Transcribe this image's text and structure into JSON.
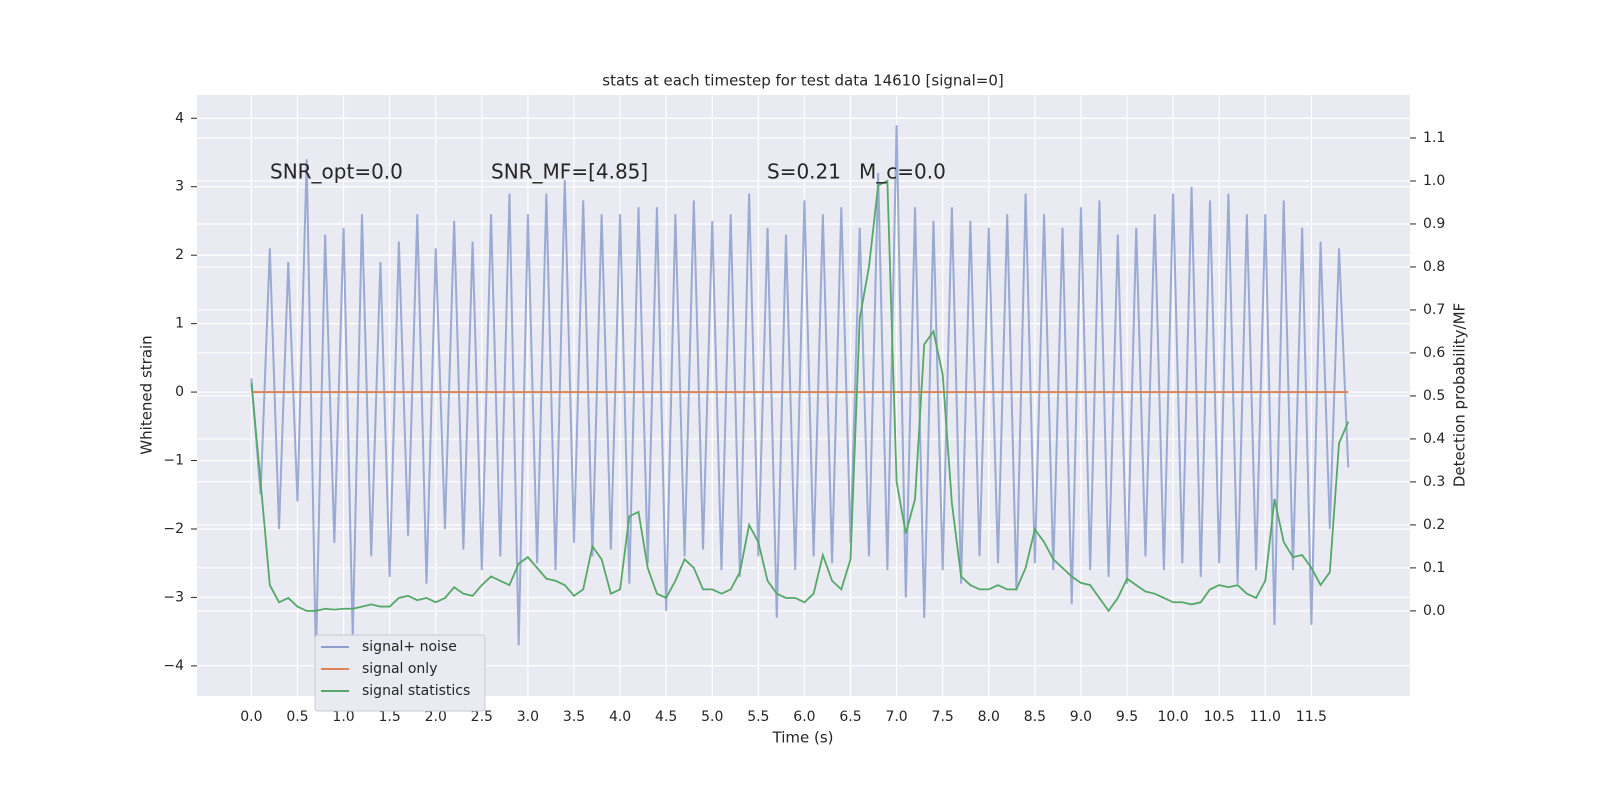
{
  "chart_data": {
    "type": "line",
    "title": "stats at each timestep for test data 14610 [signal=0]",
    "xlabel": "Time (s)",
    "ylabel": "Whitened strain",
    "y2label": "Detection probability/MF",
    "annotations": [
      "SNR_opt=0.0",
      "SNR_MF=[4.85]",
      "S=0.21",
      "M_c=0.0"
    ],
    "x": [
      0.0,
      0.1,
      0.2,
      0.3,
      0.4,
      0.5,
      0.6,
      0.7,
      0.8,
      0.9,
      1.0,
      1.1,
      1.2,
      1.3,
      1.4,
      1.5,
      1.6,
      1.7,
      1.8,
      1.9,
      2.0,
      2.1,
      2.2,
      2.3,
      2.4,
      2.5,
      2.6,
      2.7,
      2.8,
      2.9,
      3.0,
      3.1,
      3.2,
      3.3,
      3.4,
      3.5,
      3.6,
      3.7,
      3.8,
      3.9,
      4.0,
      4.1,
      4.2,
      4.3,
      4.4,
      4.5,
      4.6,
      4.7,
      4.8,
      4.9,
      5.0,
      5.1,
      5.2,
      5.3,
      5.4,
      5.5,
      5.6,
      5.7,
      5.8,
      5.9,
      6.0,
      6.1,
      6.2,
      6.3,
      6.4,
      6.5,
      6.6,
      6.7,
      6.8,
      6.9,
      7.0,
      7.1,
      7.2,
      7.3,
      7.4,
      7.5,
      7.6,
      7.7,
      7.8,
      7.9,
      8.0,
      8.1,
      8.2,
      8.3,
      8.4,
      8.5,
      8.6,
      8.7,
      8.8,
      8.9,
      9.0,
      9.1,
      9.2,
      9.3,
      9.4,
      9.5,
      9.6,
      9.7,
      9.8,
      9.9,
      10.0,
      10.1,
      10.2,
      10.3,
      10.4,
      10.5,
      10.6,
      10.7,
      10.8,
      10.9,
      11.0,
      11.1,
      11.2,
      11.3,
      11.4,
      11.5,
      11.6,
      11.7,
      11.8,
      11.9
    ],
    "series": [
      {
        "name": "signal+ noise",
        "color": "#8c9fcd",
        "values": [
          0.2,
          -1.5,
          2.1,
          -2.0,
          1.9,
          -1.6,
          3.4,
          -3.9,
          2.3,
          -2.2,
          2.4,
          -3.6,
          2.6,
          -2.4,
          1.9,
          -2.7,
          2.2,
          -2.1,
          2.6,
          -2.8,
          2.1,
          -2.0,
          2.5,
          -2.3,
          2.2,
          -2.6,
          2.6,
          -2.4,
          2.9,
          -3.7,
          2.6,
          -2.5,
          2.9,
          -2.6,
          3.1,
          -2.2,
          2.8,
          -2.4,
          2.6,
          -2.3,
          2.6,
          -2.8,
          2.7,
          -2.5,
          2.7,
          -3.2,
          2.6,
          -2.4,
          2.8,
          -2.3,
          2.5,
          -2.6,
          2.6,
          -2.7,
          2.9,
          -2.4,
          2.4,
          -3.3,
          2.3,
          -2.6,
          2.8,
          -2.4,
          2.6,
          -2.5,
          2.7,
          -2.2,
          2.4,
          -2.4,
          3.2,
          -2.6,
          3.9,
          -3.0,
          2.7,
          -3.3,
          2.5,
          -2.6,
          2.7,
          -2.8,
          2.5,
          -2.4,
          2.4,
          -2.5,
          2.6,
          -2.9,
          2.9,
          -2.5,
          2.6,
          -2.6,
          2.4,
          -3.1,
          2.7,
          -2.6,
          2.8,
          -2.7,
          2.3,
          -2.8,
          2.4,
          -2.4,
          2.6,
          -2.6,
          2.9,
          -2.5,
          3.0,
          -2.7,
          2.8,
          -2.5,
          2.9,
          -2.8,
          2.6,
          -2.6,
          2.6,
          -3.4,
          2.8,
          -2.6,
          2.4,
          -3.4,
          2.2,
          -2.0,
          2.1,
          -1.1
        ]
      },
      {
        "name": "signal only",
        "color": "#dd8452",
        "x": [
          0.0,
          11.9
        ],
        "values": [
          0,
          0
        ]
      },
      {
        "name": "signal statistics",
        "color": "#55a868",
        "axis": "y2",
        "values": [
          0.53,
          0.3,
          0.06,
          0.02,
          0.03,
          0.01,
          0,
          0,
          0.005,
          0.003,
          0.005,
          0.005,
          0.01,
          0.015,
          0.01,
          0.01,
          0.03,
          0.035,
          0.025,
          0.03,
          0.02,
          0.03,
          0.055,
          0.04,
          0.035,
          0.06,
          0.08,
          0.07,
          0.06,
          0.11,
          0.125,
          0.1,
          0.075,
          0.07,
          0.06,
          0.035,
          0.05,
          0.15,
          0.12,
          0.04,
          0.05,
          0.22,
          0.23,
          0.1,
          0.04,
          0.03,
          0.07,
          0.12,
          0.1,
          0.05,
          0.05,
          0.04,
          0.05,
          0.09,
          0.2,
          0.16,
          0.07,
          0.04,
          0.03,
          0.03,
          0.02,
          0.04,
          0.13,
          0.07,
          0.05,
          0.12,
          0.68,
          0.8,
          0.99,
          1.0,
          0.3,
          0.18,
          0.26,
          0.62,
          0.65,
          0.55,
          0.25,
          0.08,
          0.06,
          0.05,
          0.05,
          0.06,
          0.05,
          0.05,
          0.1,
          0.19,
          0.16,
          0.12,
          0.1,
          0.08,
          0.065,
          0.06,
          0.03,
          0,
          0.03,
          0.075,
          0.06,
          0.045,
          0.04,
          0.03,
          0.02,
          0.02,
          0.015,
          0.02,
          0.05,
          0.06,
          0.055,
          0.06,
          0.04,
          0.03,
          0.07,
          0.26,
          0.16,
          0.125,
          0.13,
          0.1,
          0.06,
          0.09,
          0.39,
          0.44
        ]
      }
    ],
    "xlim": [
      -0.59,
      12.57
    ],
    "xticks": [
      {
        "value": 0,
        "label": "0.0"
      },
      0.5,
      {
        "value": 1,
        "label": "1.0"
      },
      1.5,
      {
        "value": 2,
        "label": "2.0"
      },
      2.5,
      {
        "value": 3,
        "label": "3.0"
      },
      3.5,
      {
        "value": 4,
        "label": "4.0"
      },
      4.5,
      {
        "value": 5,
        "label": "5.0"
      },
      5.5,
      {
        "value": 6,
        "label": "6.0"
      },
      6.5,
      {
        "value": 7,
        "label": "7.0"
      },
      7.5,
      {
        "value": 8,
        "label": "8.0"
      },
      8.5,
      {
        "value": 9,
        "label": "9.0"
      },
      9.5,
      {
        "value": 10,
        "label": "10.0"
      },
      10.5,
      {
        "value": 11,
        "label": "11.0"
      },
      11.5
    ],
    "ylim": [
      -4.44,
      4.34
    ],
    "yticks": [
      {
        "value": -4,
        "label": "−4"
      },
      {
        "value": -3,
        "label": "−3"
      },
      {
        "value": -2,
        "label": "−2"
      },
      {
        "value": -1,
        "label": "−1"
      },
      0,
      1,
      2,
      3,
      4
    ],
    "y2lim": [
      -0.198,
      1.2
    ],
    "y2ticks": [
      {
        "value": 0,
        "label": "0.0"
      },
      0.1,
      0.2,
      0.3,
      0.4,
      0.5,
      0.6,
      0.7,
      0.8,
      0.9,
      {
        "value": 1,
        "label": "1.0"
      },
      1.1
    ],
    "grid": true,
    "legend": "lower left"
  }
}
